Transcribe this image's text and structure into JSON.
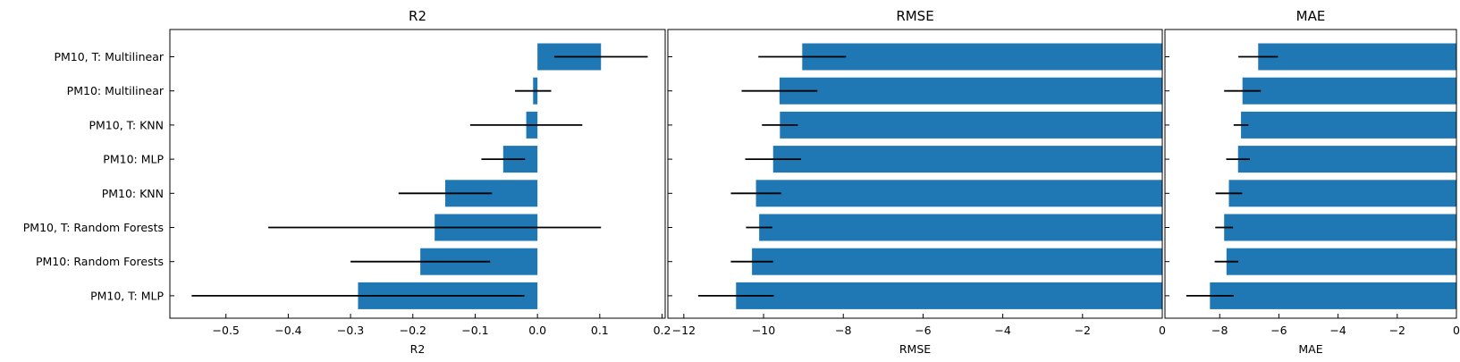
{
  "chart_data": {
    "type": "bar",
    "orientation": "horizontal",
    "categories": [
      "PM10, T: Multilinear",
      "PM10: Multilinear",
      "PM10, T: KNN",
      "PM10: MLP",
      "PM10: KNN",
      "PM10, T: Random Forests",
      "PM10: Random Forests",
      "PM10, T: MLP"
    ],
    "bar_color": "#1f77b4",
    "error_color": "#000000",
    "grid": false,
    "panels": [
      {
        "title": "R2",
        "xlabel": "R2",
        "xlim": [
          -0.59,
          0.205
        ],
        "xticks": [
          -0.5,
          -0.4,
          -0.3,
          -0.2,
          -0.1,
          0.0,
          0.1,
          0.2
        ],
        "xtick_labels": [
          "−0.5",
          "−0.4",
          "−0.3",
          "−0.2",
          "−0.1",
          "0.0",
          "0.1",
          "0.2"
        ],
        "values": [
          0.102,
          -0.007,
          -0.018,
          -0.055,
          -0.148,
          -0.165,
          -0.188,
          -0.288
        ],
        "errors": [
          0.075,
          0.029,
          0.09,
          0.035,
          0.075,
          0.267,
          0.112,
          0.267
        ]
      },
      {
        "title": "RMSE",
        "xlabel": "RMSE",
        "xlim": [
          -12.4,
          0
        ],
        "xticks": [
          -12,
          -10,
          -8,
          -6,
          -4,
          -2,
          0
        ],
        "xtick_labels": [
          "−12",
          "−10",
          "−8",
          "−6",
          "−4",
          "−2",
          "0"
        ],
        "values": [
          -9.03,
          -9.6,
          -9.59,
          -9.76,
          -10.19,
          -10.11,
          -10.29,
          -10.69
        ],
        "errors": [
          1.1,
          0.95,
          0.45,
          0.7,
          0.63,
          0.33,
          0.53,
          0.95
        ]
      },
      {
        "title": "MAE",
        "xlabel": "MAE",
        "xlim": [
          -9.85,
          0
        ],
        "xticks": [
          -8,
          -6,
          -4,
          -2,
          0
        ],
        "xtick_labels": [
          "−8",
          "−6",
          "−4",
          "−2",
          "0"
        ],
        "values": [
          -6.7,
          -7.23,
          -7.28,
          -7.38,
          -7.69,
          -7.85,
          -7.77,
          -8.33
        ],
        "errors": [
          0.67,
          0.62,
          0.25,
          0.4,
          0.45,
          0.3,
          0.4,
          0.8
        ]
      }
    ]
  }
}
